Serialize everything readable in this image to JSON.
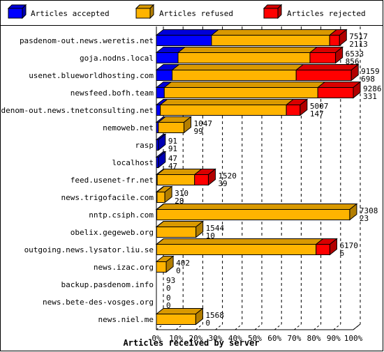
{
  "chart_data": {
    "type": "bar",
    "orientation": "horizontal",
    "stacked": true,
    "xlabel": "Articles received by server",
    "x_ticks": [
      "0%",
      "10%",
      "20%",
      "30%",
      "40%",
      "50%",
      "60%",
      "70%",
      "80%",
      "90%",
      "100%"
    ],
    "legend_position": "top",
    "series": [
      {
        "name": "Articles accepted",
        "color": "#0000ff"
      },
      {
        "name": "Articles refused",
        "color": "#ffb400"
      },
      {
        "name": "Articles rejected",
        "color": "#ff0000"
      }
    ],
    "categories": [
      "pasdenom-out.news.weretis.net",
      "goja.nodns.local",
      "usenet.blueworldhosting.com",
      "newsfeed.bofh.team",
      "pasdenom-out.news.tnetconsulting.net",
      "nemoweb.net",
      "rasp",
      "localhost",
      "feed.usenet-fr.net",
      "news.trigofacile.com",
      "nntp.csiph.com",
      "obelix.gegeweb.org",
      "outgoing.news.lysator.liu.se",
      "news.izac.org",
      "backup.pasdenom.info",
      "news.bete-des-vosges.org",
      "news.niel.me"
    ],
    "rows": [
      {
        "accepted_pct": 28,
        "refused_pct": 60,
        "rejected_pct": 5,
        "total": "7517",
        "accepted": "2113"
      },
      {
        "accepted_pct": 11,
        "refused_pct": 67,
        "rejected_pct": 13,
        "total": "6533",
        "accepted": "856"
      },
      {
        "accepted_pct": 8,
        "refused_pct": 63,
        "rejected_pct": 28,
        "total": "9159",
        "accepted": "698"
      },
      {
        "accepted_pct": 4,
        "refused_pct": 78,
        "rejected_pct": 18,
        "total": "9286",
        "accepted": "331"
      },
      {
        "accepted_pct": 2,
        "refused_pct": 64,
        "rejected_pct": 7,
        "total": "5007",
        "accepted": "147"
      },
      {
        "accepted_pct": 1,
        "refused_pct": 13,
        "rejected_pct": 0,
        "total": "1047",
        "accepted": "99"
      },
      {
        "accepted_pct": 1,
        "refused_pct": 0,
        "rejected_pct": 0,
        "total": "91",
        "accepted": "91"
      },
      {
        "accepted_pct": 1,
        "refused_pct": 0,
        "rejected_pct": 0,
        "total": "47",
        "accepted": "47"
      },
      {
        "accepted_pct": 0.4,
        "refused_pct": 19,
        "rejected_pct": 7,
        "total": "1520",
        "accepted": "39"
      },
      {
        "accepted_pct": 0.3,
        "refused_pct": 4,
        "rejected_pct": 0,
        "total": "310",
        "accepted": "28"
      },
      {
        "accepted_pct": 0.2,
        "refused_pct": 98,
        "rejected_pct": 0,
        "total": "7308",
        "accepted": "23"
      },
      {
        "accepted_pct": 0.1,
        "refused_pct": 20,
        "rejected_pct": 0,
        "total": "1544",
        "accepted": "10"
      },
      {
        "accepted_pct": 0.1,
        "refused_pct": 81,
        "rejected_pct": 7,
        "total": "6170",
        "accepted": "6"
      },
      {
        "accepted_pct": 0,
        "refused_pct": 5,
        "rejected_pct": 0,
        "total": "402",
        "accepted": "0"
      },
      {
        "accepted_pct": 0,
        "refused_pct": 0,
        "rejected_pct": 0,
        "total": "93",
        "accepted": "0"
      },
      {
        "accepted_pct": 0,
        "refused_pct": 0,
        "rejected_pct": 0,
        "total": "0",
        "accepted": "0"
      },
      {
        "accepted_pct": 0,
        "refused_pct": 20,
        "rejected_pct": 0,
        "total": "1568",
        "accepted": "0"
      }
    ]
  }
}
